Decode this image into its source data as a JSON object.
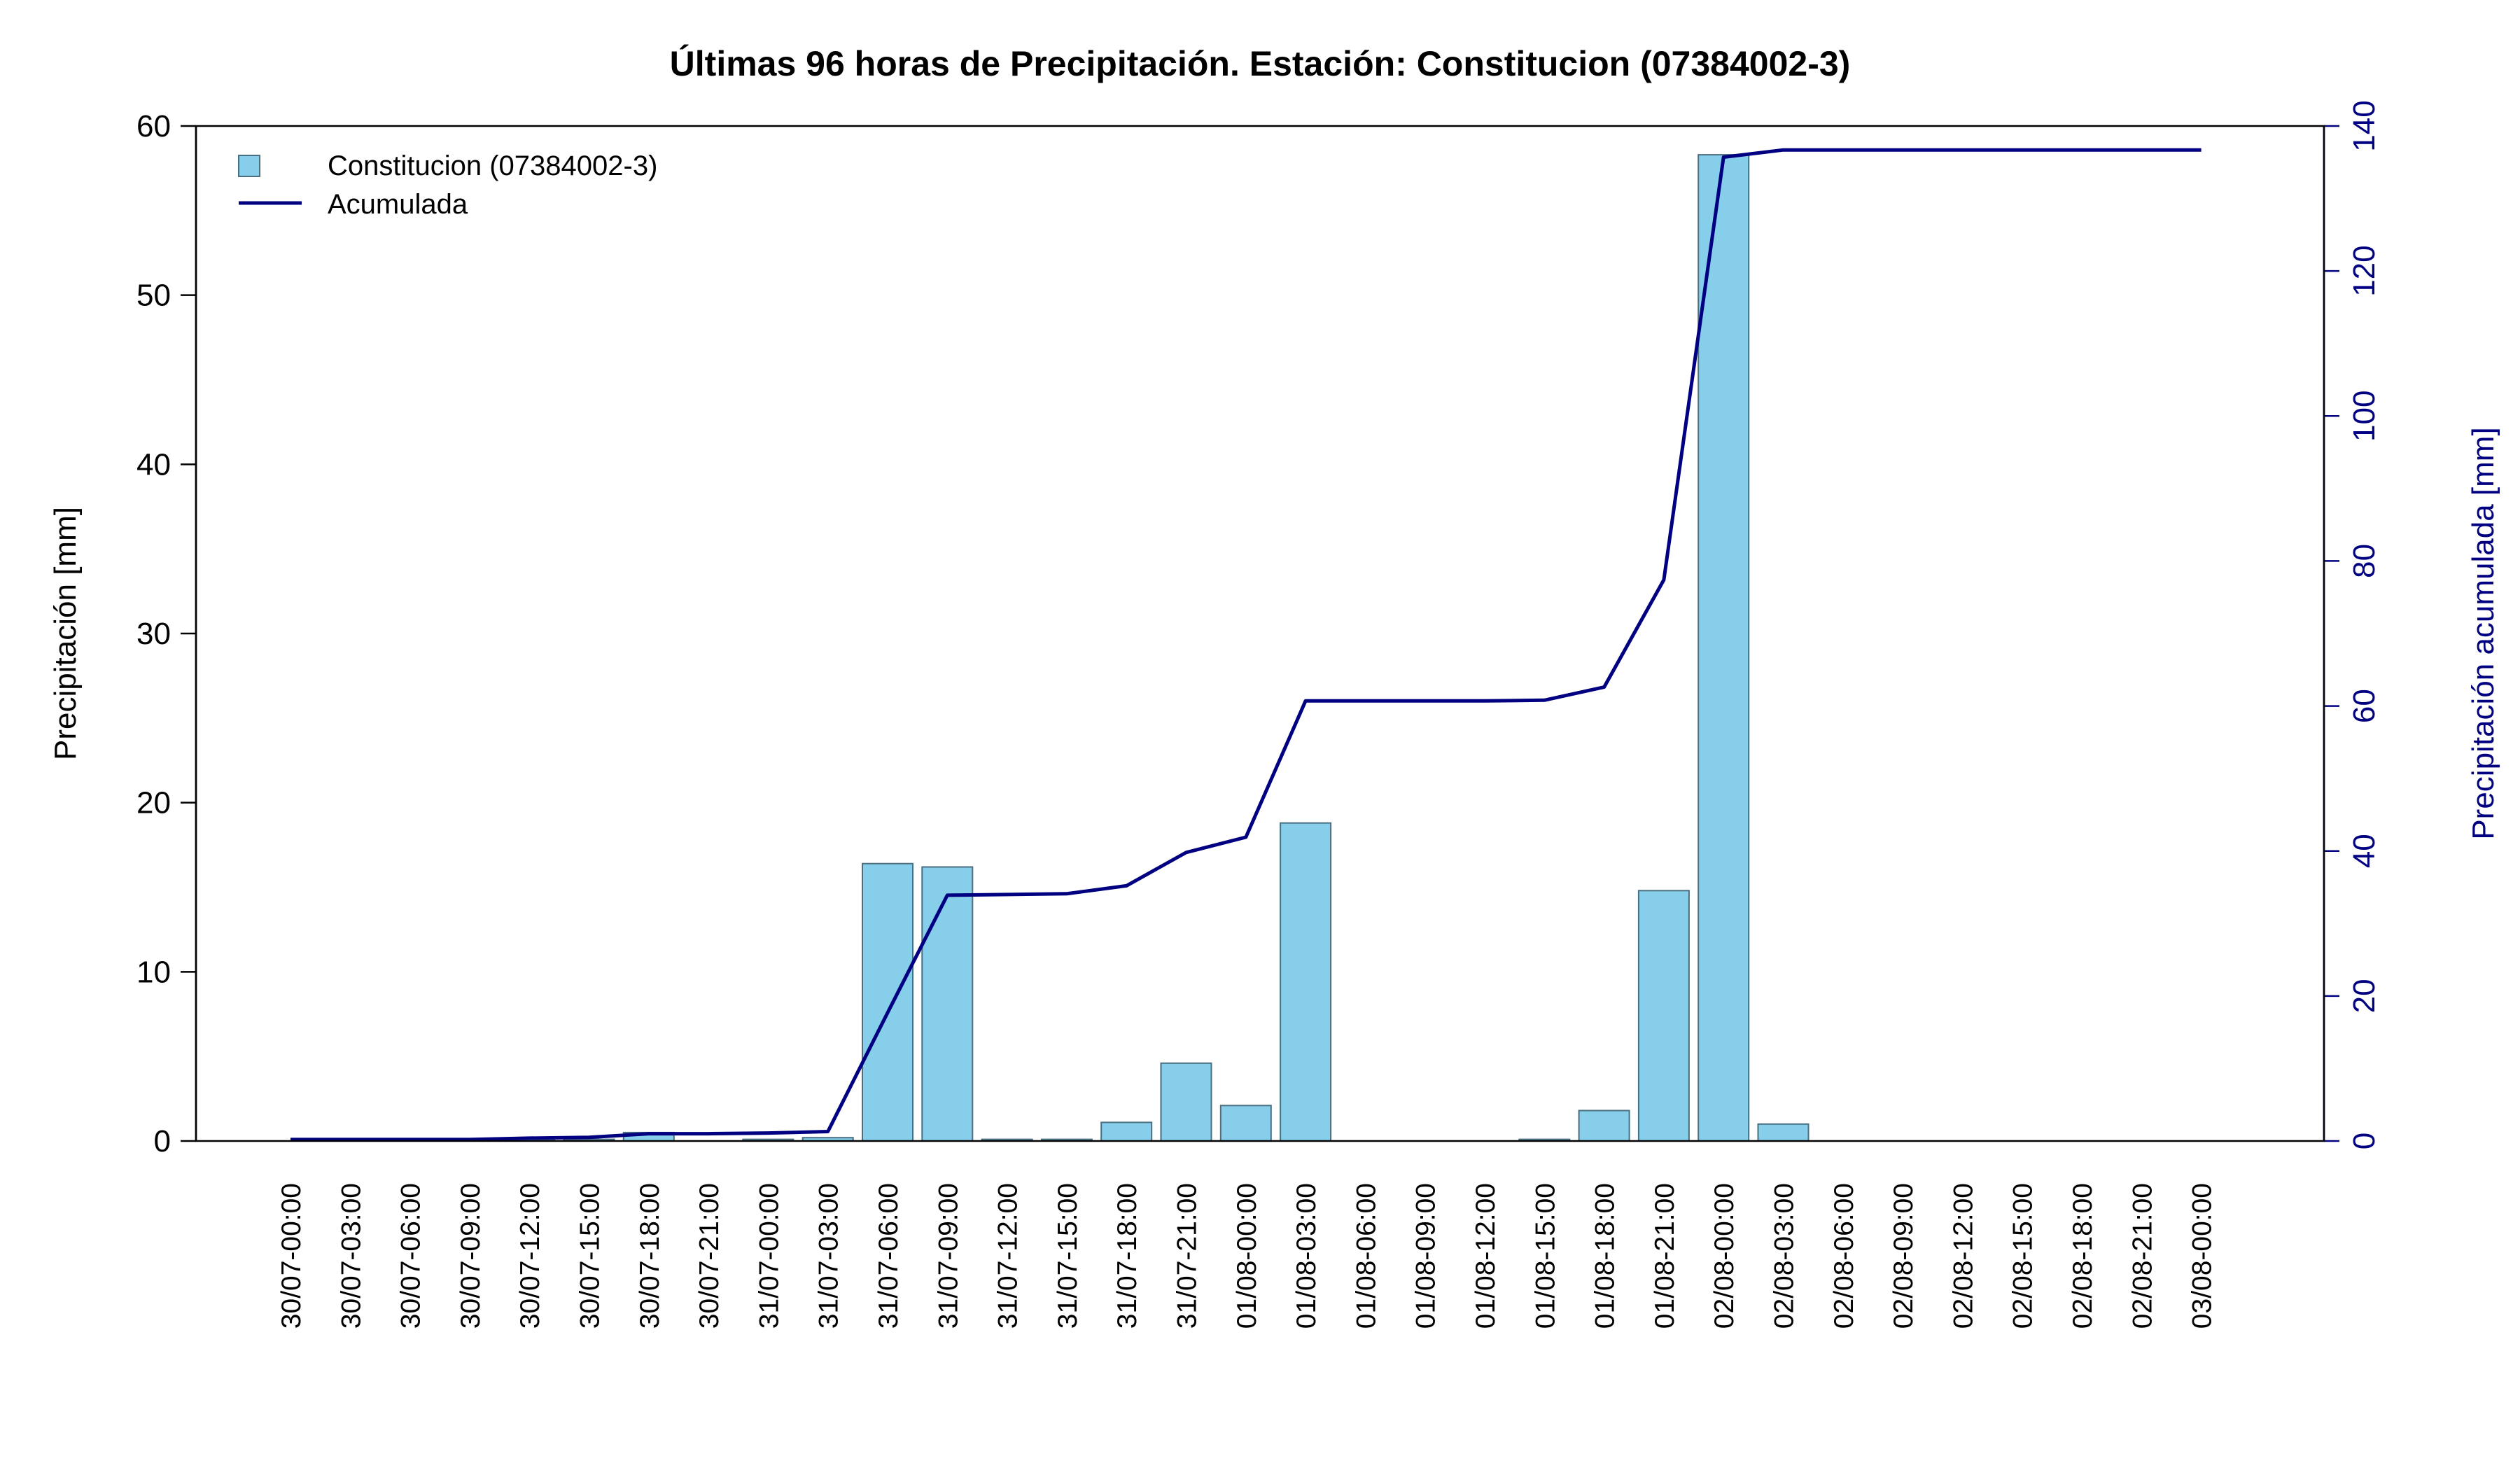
{
  "chart_data": {
    "type": "bar",
    "title": "Últimas 96 horas de Precipitación. Estación: Constitucion (07384002-3)",
    "ylabel": "Precipitación [mm]",
    "y2label": "Precipitación acumulada [mm]",
    "ylim": [
      0,
      60
    ],
    "y2lim": [
      0,
      140
    ],
    "yticks": [
      "0",
      "10",
      "20",
      "30",
      "40",
      "50",
      "60"
    ],
    "y2ticks": [
      "0",
      "20",
      "40",
      "60",
      "80",
      "100",
      "120",
      "140"
    ],
    "legend": {
      "position": "top-left",
      "bar_label": "Constitucion (07384002-3)",
      "line_label": "Acumulada"
    },
    "categories": [
      "30/07-00:00",
      "30/07-03:00",
      "30/07-06:00",
      "30/07-09:00",
      "30/07-12:00",
      "30/07-15:00",
      "30/07-18:00",
      "30/07-21:00",
      "31/07-00:00",
      "31/07-03:00",
      "31/07-06:00",
      "31/07-09:00",
      "31/07-12:00",
      "31/07-15:00",
      "31/07-18:00",
      "31/07-21:00",
      "01/08-00:00",
      "01/08-03:00",
      "01/08-06:00",
      "01/08-09:00",
      "01/08-12:00",
      "01/08-15:00",
      "01/08-18:00",
      "01/08-21:00",
      "02/08-00:00",
      "02/08-03:00",
      "02/08-06:00",
      "02/08-09:00",
      "02/08-12:00",
      "02/08-15:00",
      "02/08-18:00",
      "02/08-21:00",
      "03/08-00:00"
    ],
    "series": [
      {
        "name": "Constitucion (07384002-3)",
        "type": "bar",
        "axis": "left",
        "values": [
          0,
          0,
          0,
          0,
          0.1,
          0.1,
          0.5,
          0,
          0.1,
          0.2,
          16.4,
          16.2,
          0.1,
          0.1,
          1.1,
          4.6,
          2.1,
          18.8,
          0,
          0,
          0,
          0.1,
          1.8,
          14.8,
          58.3,
          1.0,
          0,
          0,
          0,
          0,
          0,
          0,
          0
        ]
      },
      {
        "name": "Acumulada",
        "type": "line",
        "axis": "right",
        "values": [
          0.2,
          0.2,
          0.2,
          0.2,
          0.4,
          0.5,
          1.0,
          1.0,
          1.1,
          1.3,
          17.7,
          33.9,
          34.0,
          34.1,
          35.2,
          39.8,
          41.9,
          60.7,
          60.7,
          60.7,
          60.7,
          60.8,
          62.6,
          77.4,
          135.7,
          136.7,
          136.7,
          136.7,
          136.7,
          136.7,
          136.7,
          136.7,
          136.7
        ]
      }
    ],
    "colors": {
      "bar_fill": "#87CEEB",
      "bar_stroke": "#4a6f80",
      "line": "#000080",
      "right_axis": "#000080",
      "frame": "#000000"
    },
    "grid": false
  }
}
